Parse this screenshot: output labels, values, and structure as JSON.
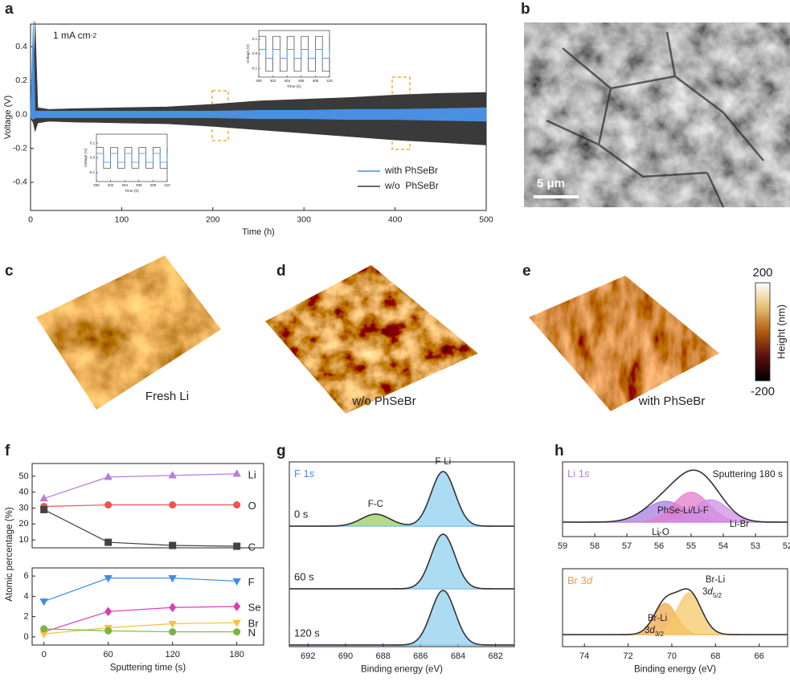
{
  "panel_labels": [
    "a",
    "b",
    "c",
    "d",
    "e",
    "f",
    "g",
    "h"
  ],
  "sem": {
    "scale_bar": "5 μm"
  },
  "afm": {
    "captions": [
      "Fresh Li",
      "w/o PhSeBr",
      "with PhSeBr"
    ],
    "colorbar": {
      "label": "Height (nm)",
      "max": 200,
      "min": -200
    }
  },
  "chart_data": [
    {
      "type": "line",
      "annotation": "1 mA cm-2",
      "xlabel": "Time (h)",
      "ylabel": "Voltage (V)",
      "xlim": [
        0,
        500
      ],
      "ylim": [
        -0.566,
        0.533
      ],
      "xticks": [
        0,
        100,
        200,
        300,
        400,
        500
      ],
      "yticks": [
        -0.4,
        -0.2,
        {
          "value": 0,
          "label": "0.0"
        },
        0.2,
        0.4
      ],
      "legend": "lower right",
      "x": [
        0,
        3,
        5,
        8,
        20,
        50,
        100,
        150,
        200,
        250,
        300,
        350,
        400,
        450,
        500
      ],
      "series": [
        {
          "name": "with PhSeBr",
          "color": "#4a8fe0",
          "values": [
            0.02,
            0.55,
            0.02,
            0.02,
            0.02,
            0.02,
            0.02,
            0.02,
            0.02,
            0.025,
            0.025,
            0.03,
            0.03,
            0.035,
            0.04
          ],
          "lower": [
            -0.02,
            -0.03,
            -0.02,
            -0.02,
            -0.02,
            -0.02,
            -0.02,
            -0.02,
            -0.02,
            -0.025,
            -0.025,
            -0.03,
            -0.03,
            -0.035,
            -0.04
          ]
        },
        {
          "name": "w/o  PhSeBr",
          "color": "#3a3a3a",
          "values": [
            0.02,
            0.03,
            0.55,
            0.04,
            0.03,
            0.035,
            0.04,
            0.045,
            0.06,
            0.08,
            0.09,
            0.1,
            0.115,
            0.125,
            0.13
          ],
          "lower": [
            -0.02,
            -0.05,
            -0.1,
            -0.05,
            -0.04,
            -0.045,
            -0.05,
            -0.055,
            -0.07,
            -0.09,
            -0.11,
            -0.13,
            -0.15,
            -0.165,
            -0.18
          ]
        }
      ]
    },
    {
      "type": "step",
      "xlabel": "Time (h)",
      "ylabel": "Voltage (V)",
      "xlim": [
        400,
        410
      ],
      "ylim": [
        -0.16,
        0.16
      ],
      "xticks": [
        400,
        402,
        404,
        406,
        408,
        410
      ],
      "yticks": [
        -0.1,
        {
          "value": 0,
          "label": "0.0"
        },
        0.1
      ],
      "x": [
        400,
        401,
        402,
        403,
        404,
        405,
        406,
        407,
        408,
        409,
        410
      ],
      "series": [
        {
          "name": "w/o  PhSeBr",
          "color": "#555555",
          "values": [
            0.12,
            -0.12,
            0.12,
            -0.12,
            0.12,
            -0.12,
            0.12,
            -0.12,
            0.12,
            -0.12,
            0.12
          ]
        },
        {
          "name": "with PhSeBr",
          "color": "#4a8fe0",
          "values": [
            0.03,
            -0.03,
            0.03,
            -0.03,
            0.03,
            -0.03,
            0.03,
            -0.03,
            0.03,
            -0.03,
            0.03
          ]
        }
      ]
    },
    {
      "type": "step",
      "xlabel": "Time (h)",
      "ylabel": "Voltage (V)",
      "xlim": [
        200,
        210
      ],
      "ylim": [
        -0.16,
        0.16
      ],
      "xticks": [
        200,
        202,
        204,
        206,
        208,
        210
      ],
      "yticks": [
        -0.1,
        {
          "value": 0,
          "label": "0.0"
        },
        0.1
      ],
      "x": [
        200,
        201,
        202,
        203,
        204,
        205,
        206,
        207,
        208,
        209,
        210
      ],
      "series": [
        {
          "name": "w/o  PhSeBr",
          "color": "#555555",
          "values": [
            0.07,
            -0.07,
            0.07,
            -0.07,
            0.07,
            -0.07,
            0.07,
            -0.07,
            0.07,
            -0.07,
            0.07
          ]
        },
        {
          "name": "with PhSeBr",
          "color": "#4a8fe0",
          "values": [
            0.03,
            -0.03,
            0.03,
            -0.03,
            0.03,
            -0.03,
            0.03,
            -0.03,
            0.03,
            -0.03,
            0.03
          ]
        }
      ]
    },
    {
      "type": "line",
      "ylabel": "Atomic percentage (%)",
      "xlim": [
        -11,
        205
      ],
      "ylim": [
        5,
        58
      ],
      "yticks": [
        10,
        20,
        30,
        40,
        50
      ],
      "x": [
        0,
        60,
        120,
        180
      ],
      "series": [
        {
          "name": "Li",
          "color": "#b57edc",
          "marker": "triangle",
          "values": [
            36,
            49.5,
            50.5,
            51.5
          ]
        },
        {
          "name": "O",
          "color": "#ef5350",
          "marker": "circle",
          "values": [
            31,
            32,
            32,
            32
          ]
        },
        {
          "name": "C",
          "color": "#424242",
          "marker": "square",
          "values": [
            29,
            8.5,
            6.5,
            6
          ]
        }
      ]
    },
    {
      "type": "line",
      "xlabel": "Sputtering time (s)",
      "xlim": [
        -11,
        205
      ],
      "ylim": [
        -0.8,
        6.8
      ],
      "xticks": [
        0,
        60,
        120,
        180
      ],
      "yticks": [
        0,
        2,
        4,
        6
      ],
      "x": [
        0,
        60,
        120,
        180
      ],
      "series": [
        {
          "name": "F",
          "color": "#3d8fe8",
          "marker": "triangle-down",
          "values": [
            3.5,
            5.8,
            5.8,
            5.5
          ]
        },
        {
          "name": "Se",
          "color": "#d63fb5",
          "marker": "diamond",
          "values": [
            0.5,
            2.5,
            2.9,
            3.0
          ]
        },
        {
          "name": "Br",
          "color": "#f5c242",
          "marker": "triangle-down",
          "values": [
            0.3,
            0.9,
            1.3,
            1.4
          ]
        },
        {
          "name": "N",
          "color": "#7cb342",
          "marker": "circle",
          "values": [
            0.8,
            0.6,
            0.5,
            0.5
          ]
        }
      ]
    },
    {
      "type": "spectrum",
      "title": "F 1s",
      "title_color": "#3d8fe8",
      "xlabel": "Binding energy (eV)",
      "xlim": [
        693,
        681
      ],
      "xticks": [
        692,
        690,
        688,
        686,
        684,
        682
      ],
      "baseline_color": "#4a8fe0",
      "spectra": [
        {
          "label": "0 s",
          "peaks": [
            {
              "name": "F-C",
              "center": 688.4,
              "height": 0.22,
              "fwhm": 1.8,
              "color": "#9ccc65"
            },
            {
              "name": "F-Li",
              "center": 684.8,
              "height": 1,
              "fwhm": 1.5,
              "color": "#8fd0f0"
            }
          ]
        },
        {
          "label": "60 s",
          "peaks": [
            {
              "center": 684.8,
              "height": 1,
              "fwhm": 1.5,
              "color": "#8fd0f0"
            }
          ]
        },
        {
          "label": "120 s",
          "peaks": [
            {
              "center": 684.8,
              "height": 1,
              "fwhm": 1.5,
              "color": "#8fd0f0"
            }
          ]
        }
      ]
    },
    {
      "type": "spectrum",
      "title": "Li 1s",
      "title_color": "#b57edc",
      "annotation": "Sputtering 180 s",
      "xlim": [
        59,
        52
      ],
      "xticks": [
        59,
        58,
        57,
        56,
        55,
        54,
        53,
        52
      ],
      "baseline_color": "#9b6bd6",
      "spectra": [
        {
          "peaks": [
            {
              "name": "Li-O",
              "center": 55.8,
              "height": 0.42,
              "fwhm": 1.5,
              "color": "#a77de0"
            },
            {
              "name": "PhSe-Li/Li-F",
              "center": 55.0,
              "height": 0.6,
              "fwhm": 1.3,
              "color": "#e47ccc"
            },
            {
              "name": "Li-Br",
              "center": 54.4,
              "height": 0.45,
              "fwhm": 1.3,
              "color": "#cf8fe6"
            }
          ]
        }
      ]
    },
    {
      "type": "spectrum",
      "title": "Br 3d",
      "title_color": "#e8a050",
      "xlabel": "Binding energy (eV)",
      "xlim": [
        75,
        64.7
      ],
      "xticks": [
        74,
        72,
        70,
        68,
        66
      ],
      "baseline_color": "#d98a30",
      "spectra": [
        {
          "peaks": [
            {
              "name": "Br-Li",
              "orbital": "3d3/2",
              "center": 70.3,
              "height": 0.75,
              "fwhm": 1.2,
              "color": "#f0a848"
            },
            {
              "name": "Br-Li",
              "orbital": "3d5/2",
              "center": 69.2,
              "height": 1.0,
              "fwhm": 1.3,
              "color": "#f6c86a"
            }
          ]
        }
      ]
    }
  ]
}
